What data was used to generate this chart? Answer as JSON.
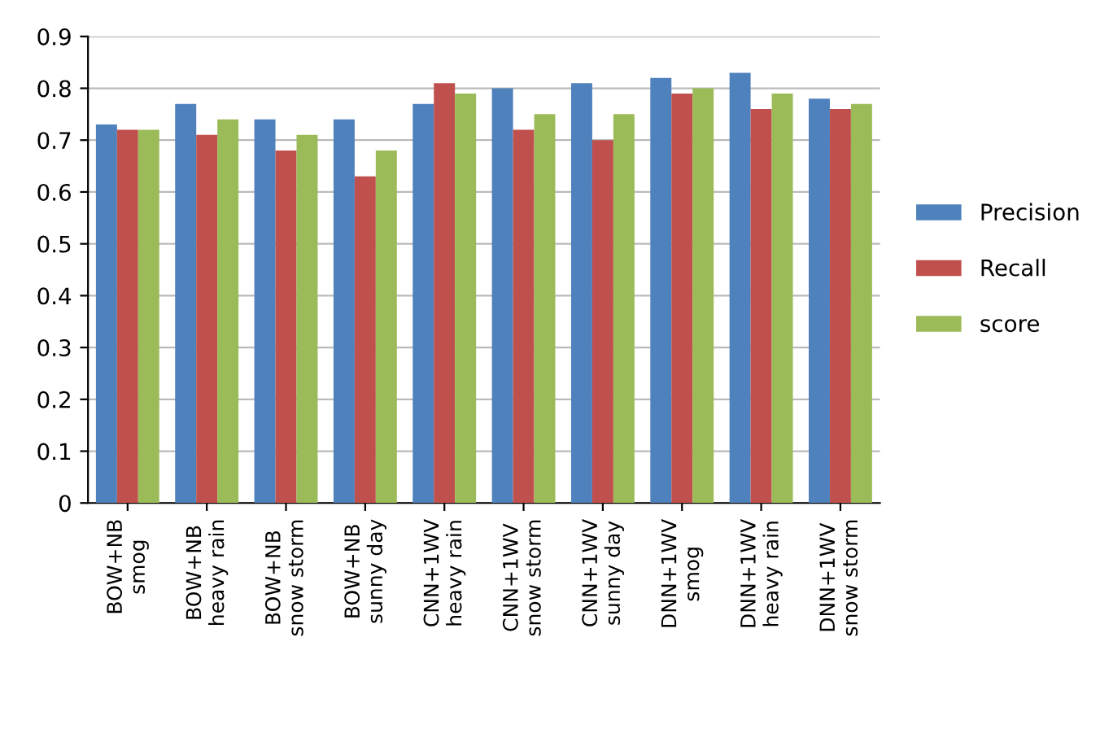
{
  "chart_data": {
    "type": "bar",
    "categories": [
      "BOW+NB\nsmog",
      "BOW+NB\nheavy rain",
      "BOW+NB\nsnow storm",
      "BOW+NB\nsunny day",
      "CNN+1WV\nheavy rain",
      "CNN+1WV\nsnow storm",
      "CNN+1WV\nsunny day",
      "DNN+1WV\nsmog",
      "DNN+1WV\nheavy rain",
      "DNN+1WV\nsnow storm"
    ],
    "series": [
      {
        "name": "Precision",
        "color": "#4f81bd",
        "values": [
          0.73,
          0.77,
          0.74,
          0.74,
          0.77,
          0.8,
          0.81,
          0.82,
          0.83,
          0.78
        ]
      },
      {
        "name": "Recall",
        "color": "#c0504d",
        "values": [
          0.72,
          0.71,
          0.68,
          0.63,
          0.81,
          0.72,
          0.7,
          0.79,
          0.76,
          0.76
        ]
      },
      {
        "name": "score",
        "color": "#9bbb59",
        "values": [
          0.72,
          0.74,
          0.71,
          0.68,
          0.79,
          0.75,
          0.75,
          0.8,
          0.79,
          0.77
        ]
      }
    ],
    "ylim": [
      0,
      0.9
    ],
    "yticks": [
      0,
      0.1,
      0.2,
      0.3,
      0.4,
      0.5,
      0.6,
      0.7,
      0.8,
      0.9
    ],
    "grid": "y",
    "legend": "right"
  }
}
